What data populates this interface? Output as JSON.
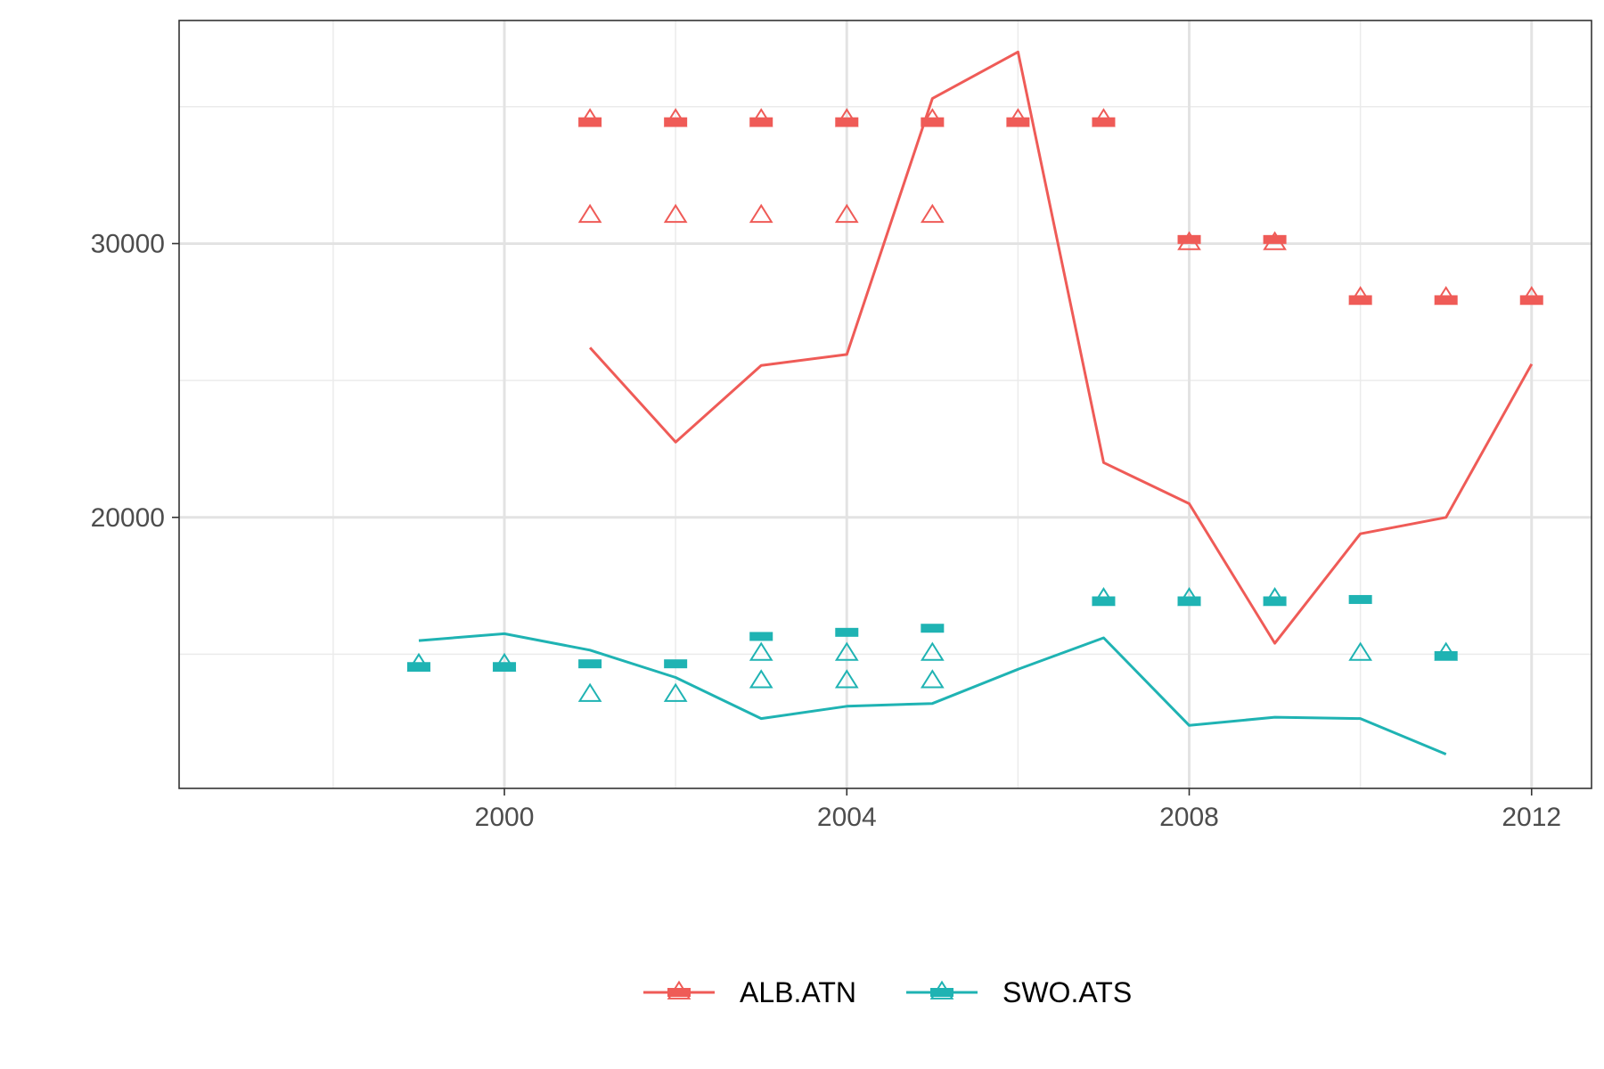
{
  "chart_data": {
    "type": "line",
    "x_axis": {
      "range": [
        1996.2,
        2012.7
      ],
      "major_ticks": [
        2000,
        2004,
        2008,
        2012
      ],
      "minor_ticks": [
        1998,
        2002,
        2006,
        2010
      ],
      "tick_labels": [
        "2000",
        "2004",
        "2008",
        "2012"
      ]
    },
    "y_axis": {
      "range": [
        10100,
        38150
      ],
      "major_ticks": [
        20000,
        30000
      ],
      "minor_ticks": [
        15000,
        25000,
        35000
      ],
      "tick_labels": [
        "30000",
        "20000"
      ]
    },
    "grid": true,
    "legend_position": "bottom",
    "series": [
      {
        "name": "ALB.ATN",
        "color": "#ef5b57",
        "line": {
          "x": [
            2001,
            2002,
            2003,
            2004,
            2005,
            2006,
            2007,
            2008,
            2009,
            2010,
            2011,
            2012
          ],
          "y": [
            26200,
            22750,
            25550,
            25950,
            35300,
            37000,
            22000,
            20500,
            15400,
            19400,
            20000,
            25600
          ]
        },
        "bar_markers": {
          "x": [
            2001,
            2002,
            2003,
            2004,
            2005,
            2006,
            2007,
            2008,
            2009,
            2010,
            2011,
            2012
          ],
          "y": [
            34450,
            34450,
            34450,
            34450,
            34450,
            34450,
            34450,
            30150,
            30150,
            27950,
            27950,
            27950
          ]
        },
        "triangle_markers": {
          "x": [
            2001,
            2002,
            2003,
            2004,
            2005,
            2006,
            2007,
            2001,
            2002,
            2003,
            2004,
            2005,
            2008,
            2009,
            2010,
            2011,
            2012
          ],
          "y": [
            34550,
            34550,
            34550,
            34550,
            34550,
            34550,
            34550,
            31050,
            31050,
            31050,
            31050,
            31050,
            30050,
            30050,
            28050,
            28050,
            28050
          ]
        }
      },
      {
        "name": "SWO.ATS",
        "color": "#1fb3b3",
        "line": {
          "x": [
            1999,
            2000,
            2001,
            2002,
            2003,
            2004,
            2005,
            2006,
            2007,
            2008,
            2009,
            2010,
            2011
          ],
          "y": [
            15500,
            15750,
            15150,
            14150,
            12650,
            13100,
            13200,
            14450,
            15600,
            12400,
            12700,
            12650,
            11350
          ]
        },
        "bar_markers": {
          "x": [
            1999,
            2000,
            2001,
            2002,
            2003,
            2004,
            2005,
            2007,
            2008,
            2009,
            2010,
            2011
          ],
          "y": [
            14550,
            14550,
            14650,
            14650,
            15650,
            15800,
            15950,
            16950,
            16950,
            16950,
            17000,
            14950
          ]
        },
        "triangle_markers": {
          "x": [
            1999,
            2000,
            2001,
            2002,
            2003,
            2003,
            2004,
            2004,
            2005,
            2005,
            2007,
            2008,
            2009,
            2010,
            2011
          ],
          "y": [
            14650,
            14650,
            13550,
            13550,
            14050,
            15050,
            14050,
            15050,
            14050,
            15050,
            17050,
            17050,
            17050,
            15050,
            15050
          ]
        }
      }
    ],
    "legend": [
      "ALB.ATN",
      "SWO.ATS"
    ]
  }
}
